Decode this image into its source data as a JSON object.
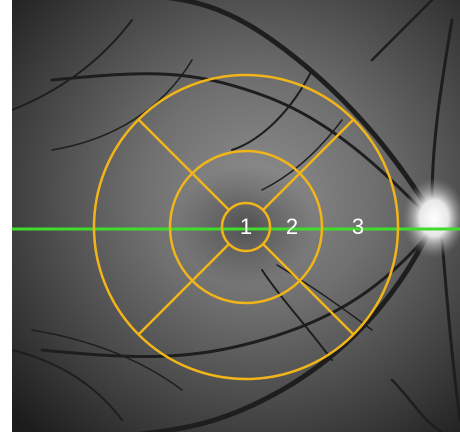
{
  "overlay": {
    "grid_color": "#f2b519",
    "scan_line_color": "#3fdc2b",
    "zones": [
      {
        "label": "1"
      },
      {
        "label": "2"
      },
      {
        "label": "3"
      }
    ]
  },
  "image": {
    "subject": "retinal-fundus-infrared",
    "optic-disc": "right-edge"
  }
}
